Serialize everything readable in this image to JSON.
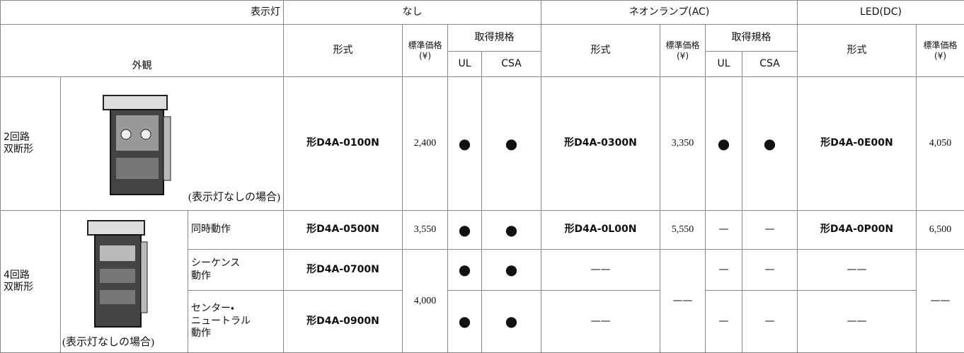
{
  "header": {
    "indicator": "表示灯",
    "appearance": "外観",
    "groups": [
      "なし",
      "ネオンランプ(AC)",
      "LED(DC)"
    ],
    "model": "形式",
    "price": "標準価格",
    "yen": "(¥)",
    "cert": "取得規格",
    "ul": "UL",
    "csa": "CSA"
  },
  "rows": [
    {
      "circuit": [
        "2回路",
        "双断形"
      ],
      "caption": "(表示灯なしの場合)",
      "none": {
        "model": "形D4A-0100N",
        "price": "2,400",
        "ul": "●",
        "csa": "●"
      },
      "neon": {
        "model": "形D4A-0300N",
        "price": "3,350",
        "ul": "●",
        "csa": "●"
      },
      "led": {
        "model": "形D4A-0E00N",
        "price": "4,050"
      }
    },
    {
      "circuit": [
        "4回路",
        "双断形"
      ],
      "caption": "(表示灯なしの場合)",
      "ops": [
        {
          "operation": [
            "同時動作"
          ],
          "none": {
            "model": "形D4A-0500N",
            "price": "3,550",
            "ul": "●",
            "csa": "●"
          },
          "neon": {
            "model": "形D4A-0L00N",
            "price": "5,550",
            "ul": "—",
            "csa": "—"
          },
          "led": {
            "model": "形D4A-0P00N",
            "price": "6,500"
          }
        },
        {
          "operation": [
            "シーケンス",
            "動作"
          ],
          "none": {
            "model": "形D4A-0700N",
            "ul": "●",
            "csa": "●"
          },
          "neon": {
            "model": "——",
            "ul": "—",
            "csa": "—"
          },
          "led": {
            "model": "——"
          }
        },
        {
          "operation": [
            "センター・",
            "ニュートラル",
            "動作"
          ],
          "none": {
            "model": "形D4A-0900N",
            "ul": "●",
            "csa": "●"
          },
          "neon": {
            "model": "——",
            "ul": "—",
            "csa": "—"
          },
          "led": {
            "model": "——"
          }
        }
      ],
      "shared": {
        "none_price": "4,000",
        "neon_price": "——",
        "led_price": "——"
      }
    }
  ]
}
